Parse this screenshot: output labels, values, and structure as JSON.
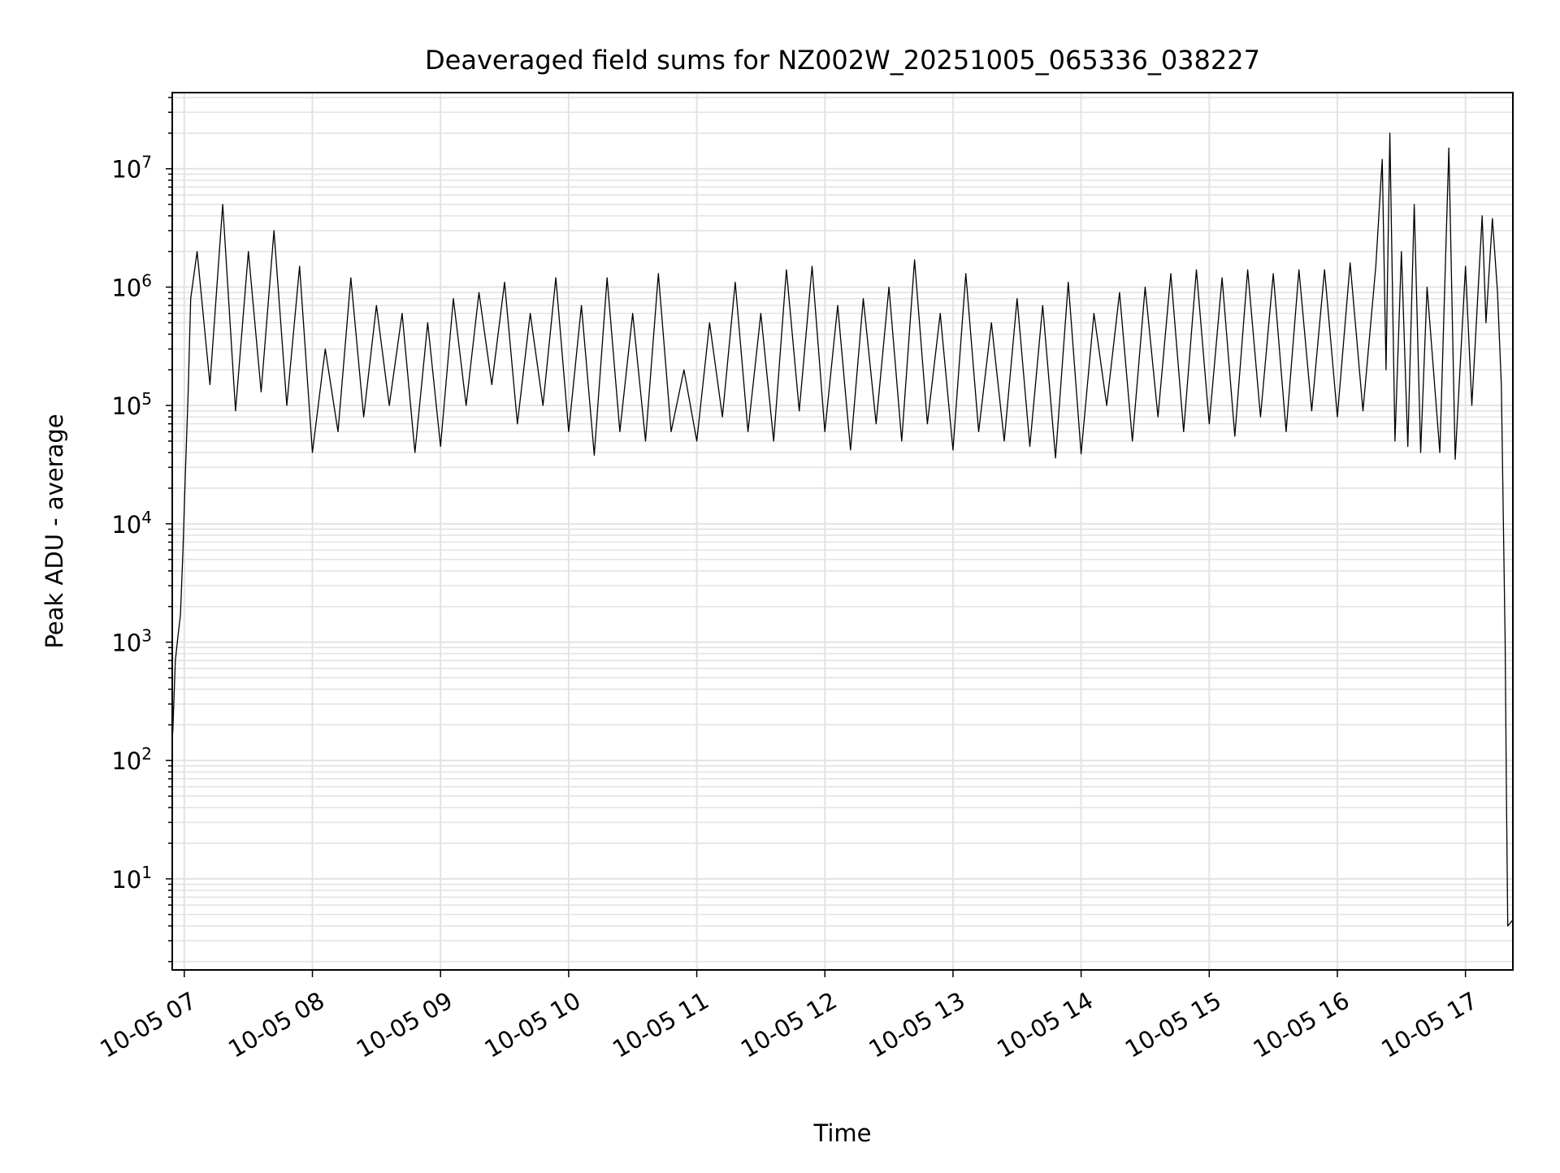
{
  "chart_data": {
    "type": "line",
    "title": "Deaveraged field sums for NZ002W_20251005_065336_038227",
    "xlabel": "Time",
    "ylabel": "Peak ADU - average",
    "yscale": "log",
    "xlim_hours": [
      6.906,
      17.37
    ],
    "ylim": [
      1.7,
      44000000.0
    ],
    "grid": true,
    "x_tick_hours": [
      7,
      8,
      9,
      10,
      11,
      12,
      13,
      14,
      15,
      16,
      17
    ],
    "x_tick_labels": [
      "10-05 07",
      "10-05 08",
      "10-05 09",
      "10-05 10",
      "10-05 11",
      "10-05 12",
      "10-05 13",
      "10-05 14",
      "10-05 15",
      "10-05 16",
      "10-05 17"
    ],
    "y_tick_exponents": [
      "1",
      "2",
      "3",
      "4",
      "5",
      "6",
      "7"
    ],
    "y_tick_base": "10",
    "line_color": "#000000",
    "grid_color": "#e3e3e3",
    "x_hours": [
      6.91,
      6.93,
      6.95,
      6.97,
      6.99,
      7.01,
      7.03,
      7.05,
      7.1,
      7.2,
      7.3,
      7.4,
      7.5,
      7.6,
      7.7,
      7.8,
      7.9,
      8.0,
      8.1,
      8.2,
      8.3,
      8.4,
      8.5,
      8.6,
      8.7,
      8.8,
      8.9,
      9.0,
      9.1,
      9.2,
      9.3,
      9.4,
      9.5,
      9.6,
      9.7,
      9.8,
      9.9,
      10.0,
      10.1,
      10.2,
      10.3,
      10.4,
      10.5,
      10.6,
      10.7,
      10.8,
      10.9,
      11.0,
      11.1,
      11.2,
      11.3,
      11.4,
      11.5,
      11.6,
      11.7,
      11.8,
      11.9,
      12.0,
      12.1,
      12.2,
      12.3,
      12.4,
      12.5,
      12.6,
      12.7,
      12.8,
      12.9,
      13.0,
      13.1,
      13.2,
      13.3,
      13.4,
      13.5,
      13.6,
      13.7,
      13.8,
      13.9,
      14.0,
      14.1,
      14.2,
      14.3,
      14.4,
      14.5,
      14.6,
      14.7,
      14.8,
      14.9,
      15.0,
      15.1,
      15.2,
      15.3,
      15.4,
      15.5,
      15.6,
      15.7,
      15.8,
      15.9,
      16.0,
      16.1,
      16.2,
      16.3,
      16.35,
      16.38,
      16.41,
      16.45,
      16.5,
      16.55,
      16.6,
      16.65,
      16.7,
      16.8,
      16.87,
      16.92,
      17.0,
      17.05,
      17.13,
      17.16,
      17.21,
      17.25,
      17.28,
      17.31,
      17.32,
      17.33,
      17.37
    ],
    "y_values": [
      170,
      700,
      1100,
      1700,
      6000,
      30000.0,
      130000.0,
      800000.0,
      2000000.0,
      150000.0,
      5000000.0,
      90000.0,
      2000000.0,
      130000.0,
      3000000.0,
      100000.0,
      1500000.0,
      40000.0,
      300000.0,
      60000.0,
      1200000.0,
      80000.0,
      700000.0,
      100000.0,
      600000.0,
      40000.0,
      500000.0,
      45000.0,
      800000.0,
      100000.0,
      900000.0,
      150000.0,
      1100000.0,
      70000.0,
      600000.0,
      100000.0,
      1200000.0,
      60000.0,
      700000.0,
      38000.0,
      1200000.0,
      60000.0,
      600000.0,
      50000.0,
      1300000.0,
      60000.0,
      200000.0,
      50000.0,
      500000.0,
      80000.0,
      1100000.0,
      60000.0,
      600000.0,
      50000.0,
      1400000.0,
      90000.0,
      1500000.0,
      60000.0,
      700000.0,
      42000.0,
      800000.0,
      70000.0,
      1000000.0,
      50000.0,
      1700000.0,
      70000.0,
      600000.0,
      42000.0,
      1300000.0,
      60000.0,
      500000.0,
      50000.0,
      800000.0,
      45000.0,
      700000.0,
      36000.0,
      1100000.0,
      39000.0,
      600000.0,
      100000.0,
      900000.0,
      50000.0,
      1000000.0,
      80000.0,
      1300000.0,
      60000.0,
      1400000.0,
      70000.0,
      1200000.0,
      55000.0,
      1400000.0,
      80000.0,
      1300000.0,
      60000.0,
      1400000.0,
      90000.0,
      1400000.0,
      80000.0,
      1600000.0,
      90000.0,
      1500000.0,
      12000000.0,
      200000.0,
      20000000.0,
      50000.0,
      2000000.0,
      45000.0,
      5000000.0,
      40000.0,
      1000000.0,
      40000.0,
      15000000.0,
      35000.0,
      1500000.0,
      100000.0,
      4000000.0,
      500000.0,
      3800000.0,
      900000.0,
      150000.0,
      1000.0,
      50,
      4,
      4.5
    ]
  }
}
